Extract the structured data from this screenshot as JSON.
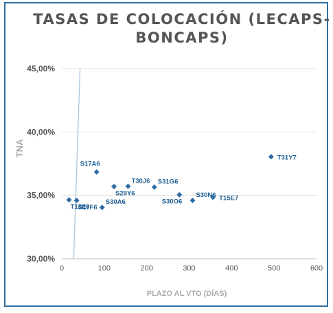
{
  "chart_data": {
    "type": "scatter",
    "title_lines": [
      "TASAS DE COLOCACIÓN (LECAPS-",
      "BONCAPS)"
    ],
    "xlabel": "PLAZO AL VTO (DÍAS)",
    "ylabel": "TNA",
    "xlim": [
      0,
      600
    ],
    "ylim": [
      30,
      45
    ],
    "x_ticks": [
      0,
      100,
      200,
      300,
      400,
      500,
      600
    ],
    "x_tick_labels": [
      "0",
      "100",
      "200",
      "300",
      "400",
      "500",
      "600"
    ],
    "y_ticks": [
      30,
      35,
      40,
      45
    ],
    "y_tick_labels": [
      "30,00%",
      "35,00%",
      "40,00%",
      "45,00%"
    ],
    "grid": "horizontal",
    "legend": "none",
    "marker_color": "#2e6ca6",
    "label_color": "#1f5f95",
    "points": [
      {
        "label": "T13E6",
        "x": 17,
        "y": 34.65,
        "label_pos": "below-right"
      },
      {
        "label": "S27F6",
        "x": 35,
        "y": 34.6,
        "label_pos": "below-right"
      },
      {
        "label": "S17A6",
        "x": 82,
        "y": 36.85,
        "label_pos": "above-left"
      },
      {
        "label": "S30A6",
        "x": 95,
        "y": 34.05,
        "label_pos": "above-right"
      },
      {
        "label": "S29Y6",
        "x": 123,
        "y": 35.7,
        "label_pos": "below-right"
      },
      {
        "label": "T30J6",
        "x": 156,
        "y": 35.72,
        "label_pos": "above-right"
      },
      {
        "label": "S31G6",
        "x": 218,
        "y": 35.65,
        "label_pos": "above-right"
      },
      {
        "label": "S30O6",
        "x": 277,
        "y": 35.05,
        "label_pos": "below-left"
      },
      {
        "label": "S30N6",
        "x": 308,
        "y": 34.6,
        "label_pos": "above-right"
      },
      {
        "label": "T15E7",
        "x": 356,
        "y": 34.85,
        "label_pos": "right"
      },
      {
        "label": "T31Y7",
        "x": 493,
        "y": 38.05,
        "label_pos": "right"
      }
    ],
    "trendline": {
      "color": "#a9c4de",
      "x1": 28,
      "y1": 30,
      "x2": 43,
      "y2": 45
    }
  }
}
